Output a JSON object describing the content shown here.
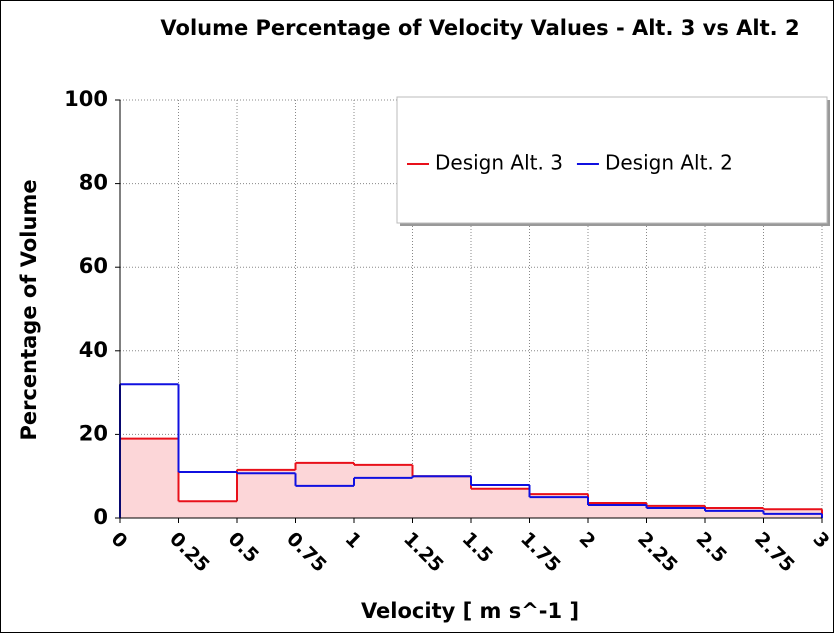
{
  "chart_data": {
    "type": "histogram",
    "title": "Volume Percentage of Velocity Values - Alt. 3 vs Alt. 2",
    "x_label": "Velocity [ m s^-1 ]",
    "y_label": "Percentage of Volume",
    "bins": [
      0,
      0.25,
      0.5,
      0.75,
      1,
      1.25,
      1.5,
      1.75,
      2,
      2.25,
      2.5,
      2.75,
      3
    ],
    "series": [
      {
        "name": "Design Alt. 3",
        "color": "#e8101a",
        "fill": "#fcd6d8",
        "values": [
          19,
          4,
          11.5,
          13.2,
          12.7,
          10,
          7,
          5.7,
          3.6,
          2.9,
          2.4,
          2.1
        ]
      },
      {
        "name": "Design Alt. 2",
        "color": "#1010e0",
        "values": [
          32,
          11,
          10.7,
          7.7,
          9.6,
          10,
          7.9,
          5,
          3.1,
          2.4,
          1.7,
          1
        ]
      }
    ],
    "xlim": [
      0,
      3
    ],
    "xticks": [
      0,
      0.25,
      0.5,
      0.75,
      1,
      1.25,
      1.5,
      1.75,
      2,
      2.25,
      2.5,
      2.75,
      3
    ],
    "ylim": [
      0,
      100
    ],
    "yticks": [
      0,
      20,
      40,
      60,
      80,
      100
    ],
    "grid": true,
    "legend": "upper right"
  }
}
